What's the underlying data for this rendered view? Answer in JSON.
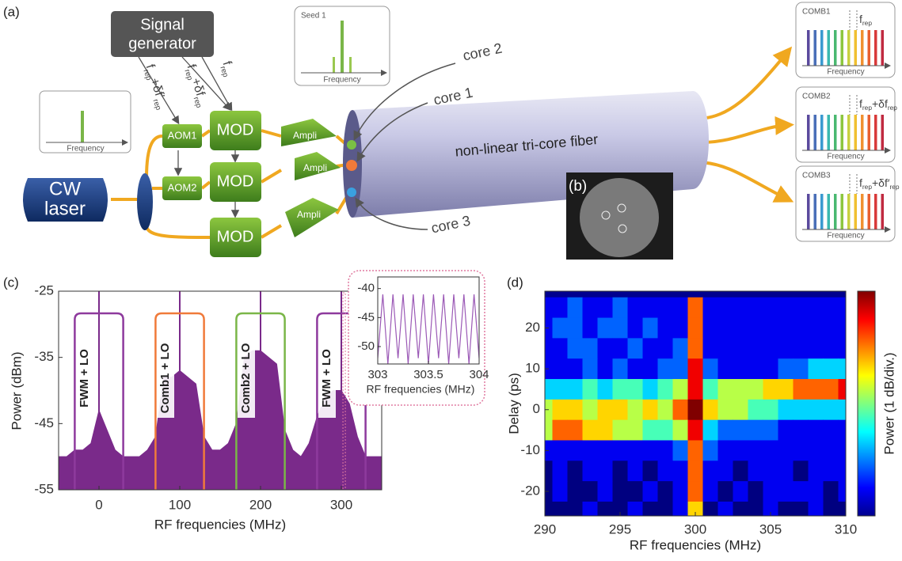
{
  "figure_a": {
    "label": "(a)",
    "signal_generator": [
      "Signal",
      "generator"
    ],
    "signals": [
      [
        "f",
        "rep",
        "+δf′",
        "rep"
      ],
      [
        "f",
        "rep",
        "+δf",
        "rep"
      ],
      [
        "f",
        "rep"
      ]
    ],
    "aom": [
      "AOM1",
      "AOM2"
    ],
    "mod": [
      "MOD",
      "MOD",
      "MOD"
    ],
    "ampli": [
      "Ampli",
      "Ampli",
      "Ampli"
    ],
    "laser": [
      "CW",
      "laser"
    ],
    "input_axis": "Frequency",
    "seed": {
      "title": "Seed 1",
      "axis": "Frequency"
    },
    "cores": [
      "core 2",
      "core 1",
      "core 3"
    ],
    "fiber": "non-linear tri-core fiber",
    "inset_label": "(b)",
    "combs": [
      {
        "name": "COMB1",
        "axis": "Frequency",
        "spacing": [
          "f",
          "rep"
        ]
      },
      {
        "name": "COMB2",
        "axis": "Frequency",
        "spacing": [
          "f",
          "rep",
          "+δf",
          "rep"
        ]
      },
      {
        "name": "COMB3",
        "axis": "Frequency",
        "spacing": [
          "f",
          "rep",
          "+δf′",
          "rep"
        ]
      }
    ]
  },
  "chart_data": [
    {
      "type": "area",
      "label": "(c)",
      "xlabel": "RF frequencies (MHz)",
      "ylabel": "Power (dBm)",
      "color": "#7a2a8a",
      "x": [
        -50,
        -40,
        -30,
        -20,
        -10,
        0,
        10,
        20,
        30,
        40,
        50,
        60,
        70,
        80,
        90,
        100,
        110,
        120,
        130,
        140,
        150,
        160,
        170,
        180,
        190,
        200,
        210,
        220,
        230,
        240,
        250,
        260,
        270,
        280,
        290,
        300,
        310,
        320,
        330,
        340,
        350
      ],
      "values": [
        -50,
        -50,
        -49,
        -49,
        -48,
        -43,
        -46,
        -49,
        -50,
        -50,
        -50,
        -49,
        -47,
        -38,
        -38,
        -37,
        -38,
        -39,
        -47,
        -49,
        -49,
        -48,
        -45,
        -35,
        -34,
        -34,
        -35,
        -36,
        -46,
        -49,
        -50,
        -48,
        -44,
        -41,
        -40,
        -40,
        -42,
        -47,
        -50,
        -50,
        -50
      ],
      "spikes": {
        "x": [
          0,
          100,
          200,
          300
        ],
        "values": [
          -25,
          -25,
          -25,
          -25
        ]
      },
      "xlim": [
        -50,
        350
      ],
      "ylim": [
        -55,
        -25
      ],
      "xticks": [
        0,
        100,
        200,
        300
      ],
      "yticks": [
        -55,
        -45,
        -35,
        -25
      ],
      "annotations": [
        {
          "text": "FWM + LO",
          "x": [
            -30,
            30
          ],
          "color": "#8e3a9d"
        },
        {
          "text": "Comb1 + LO",
          "x": [
            70,
            130
          ],
          "color": "#f07a3a"
        },
        {
          "text": "Comb2 + LO",
          "x": [
            170,
            230
          ],
          "color": "#7ab648"
        },
        {
          "text": "FWM + LO",
          "x": [
            270,
            330
          ],
          "color": "#8e3a9d"
        }
      ],
      "inset": {
        "type": "line",
        "xlabel": "RF frequencies (MHz)",
        "color": "#9b59b6",
        "x": [
          303,
          303.05,
          303.1,
          303.15,
          303.2,
          303.25,
          303.3,
          303.35,
          303.4,
          303.45,
          303.5,
          303.55,
          303.6,
          303.65,
          303.7,
          303.75,
          303.8,
          303.85,
          303.9,
          303.95,
          304
        ],
        "values": [
          -52,
          -41,
          -53,
          -41,
          -52,
          -41,
          -53,
          -41,
          -52,
          -41,
          -53,
          -41,
          -52,
          -41,
          -53,
          -41,
          -52,
          -41,
          -53,
          -41,
          -52
        ],
        "xlim": [
          303,
          304
        ],
        "ylim": [
          -53,
          -38
        ],
        "xticks": [
          303,
          303.5,
          304
        ],
        "yticks": [
          -50,
          -45,
          -40
        ]
      }
    },
    {
      "type": "heatmap",
      "label": "(d)",
      "xlabel": "RF frequencies (MHz)",
      "ylabel": "Delay (ps)",
      "colorbar_label": "Power (1 dB/div.)",
      "colormap": "jet",
      "x": [
        290,
        291,
        292,
        293,
        294,
        295,
        296,
        297,
        298,
        299,
        300,
        301,
        302,
        303,
        304,
        305,
        306,
        307,
        308,
        309,
        310
      ],
      "y": [
        25,
        20,
        15,
        10,
        5,
        0,
        -5,
        -10,
        -15,
        -20,
        -25
      ],
      "values": [
        [
          1,
          1,
          2,
          1,
          1,
          2,
          1,
          1,
          1,
          1,
          7,
          1,
          1,
          1,
          1,
          1,
          1,
          1,
          1,
          1,
          1
        ],
        [
          1,
          2,
          2,
          1,
          2,
          2,
          1,
          2,
          1,
          1,
          7,
          1,
          1,
          1,
          1,
          1,
          1,
          1,
          1,
          1,
          1
        ],
        [
          1,
          1,
          2,
          2,
          1,
          1,
          2,
          1,
          1,
          2,
          7,
          1,
          1,
          1,
          1,
          1,
          1,
          1,
          1,
          1,
          1
        ],
        [
          1,
          1,
          1,
          2,
          1,
          2,
          1,
          1,
          2,
          2,
          8,
          2,
          1,
          1,
          1,
          1,
          2,
          2,
          3,
          3,
          3
        ],
        [
          3,
          3,
          3,
          4,
          3,
          4,
          4,
          3,
          4,
          5,
          8,
          4,
          5,
          5,
          5,
          6,
          6,
          7,
          7,
          7,
          8
        ],
        [
          5,
          6,
          6,
          5,
          6,
          6,
          5,
          6,
          5,
          7,
          9,
          6,
          5,
          5,
          4,
          4,
          3,
          3,
          3,
          3,
          3
        ],
        [
          5,
          7,
          7,
          6,
          6,
          5,
          5,
          4,
          4,
          5,
          8,
          3,
          2,
          2,
          2,
          2,
          1,
          1,
          1,
          1,
          1
        ],
        [
          1,
          1,
          1,
          1,
          1,
          1,
          1,
          1,
          1,
          2,
          7,
          2,
          1,
          1,
          1,
          1,
          1,
          1,
          1,
          1,
          1
        ],
        [
          0,
          1,
          0,
          1,
          1,
          0,
          1,
          0,
          1,
          1,
          7,
          1,
          1,
          0,
          1,
          1,
          1,
          0,
          1,
          1,
          1
        ],
        [
          0,
          1,
          0,
          0,
          1,
          0,
          0,
          1,
          0,
          1,
          7,
          1,
          0,
          1,
          0,
          1,
          1,
          1,
          1,
          0,
          1
        ],
        [
          0,
          0,
          0,
          1,
          0,
          0,
          1,
          0,
          0,
          1,
          6,
          0,
          1,
          0,
          0,
          1,
          0,
          0,
          1,
          0,
          0
        ]
      ],
      "xlim": [
        290,
        310
      ],
      "ylim": [
        -26,
        29
      ],
      "xticks": [
        290,
        295,
        300,
        305,
        310
      ],
      "yticks": [
        -20,
        -10,
        0,
        10,
        20
      ]
    }
  ]
}
